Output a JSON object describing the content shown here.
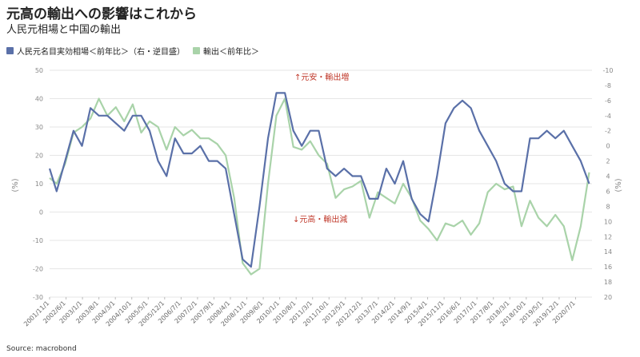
{
  "title": "元高の輸出への影響はこれから",
  "subtitle": "人民元相場と中国の輸出",
  "legend": {
    "series1": "人民元名目実効相場＜前年比＞（右・逆目盛）",
    "series2": "輸出＜前年比＞"
  },
  "source": "Source: macrobond",
  "colors": {
    "series1": "#5a70a8",
    "series2": "#a9d3a9"
  },
  "chart_data": {
    "type": "line",
    "ylabel_left": "(%)",
    "ylabel_right": "(%)",
    "ylim_left": [
      -30,
      50
    ],
    "ylim_right_inverted": [
      20,
      -10
    ],
    "yticks_left": [
      "50",
      "40",
      "30",
      "20",
      "10",
      "0",
      "-10",
      "-20",
      "-30"
    ],
    "yticks_right": [
      "-10",
      "-8",
      "-6",
      "-4",
      "-2",
      "0",
      "2",
      "4",
      "6",
      "8",
      "10",
      "12",
      "14",
      "16",
      "18",
      "20"
    ],
    "xtick_labels": [
      "2001/11/1",
      "2002/6/1",
      "2003/1/1",
      "2003/8/1",
      "2004/3/1",
      "2004/10/1",
      "2005/5/1",
      "2005/12/1",
      "2006/7/1",
      "2007/2/1",
      "2007/9/1",
      "2008/4/1",
      "2008/11/1",
      "2009/6/1",
      "2010/1/1",
      "2010/8/1",
      "2011/3/1",
      "2011/10/1",
      "2012/5/1",
      "2012/12/1",
      "2013/7/1",
      "2014/2/1",
      "2014/9/1",
      "2015/4/1",
      "2015/11/1",
      "2016/6/1",
      "2017/1/1",
      "2017/8/1",
      "2018/3/1",
      "2018/10/1",
      "2019/5/1",
      "2019/12/1",
      "2020/7/1"
    ],
    "x_years": [
      2001.75,
      2002.0,
      2002.3,
      2002.6,
      2002.9,
      2003.2,
      2003.5,
      2003.8,
      2004.1,
      2004.4,
      2004.7,
      2005.0,
      2005.3,
      2005.6,
      2005.9,
      2006.2,
      2006.5,
      2006.8,
      2007.1,
      2007.4,
      2007.7,
      2008.0,
      2008.3,
      2008.6,
      2008.9,
      2009.2,
      2009.5,
      2009.8,
      2010.1,
      2010.4,
      2010.7,
      2011.0,
      2011.3,
      2011.6,
      2011.9,
      2012.2,
      2012.5,
      2012.8,
      2013.1,
      2013.4,
      2013.7,
      2014.0,
      2014.3,
      2014.6,
      2014.9,
      2015.2,
      2015.5,
      2015.8,
      2016.1,
      2016.4,
      2016.7,
      2017.0,
      2017.3,
      2017.6,
      2017.9,
      2018.2,
      2018.5,
      2018.8,
      2019.1,
      2019.4,
      2019.7,
      2020.0,
      2020.3,
      2020.6,
      2020.9
    ],
    "series": [
      {
        "name": "人民元名目実効相場＜前年比＞（右・逆目盛）",
        "axis": "right",
        "values": [
          3,
          6,
          2,
          -2,
          0,
          -5,
          -4,
          -4,
          -3,
          -2,
          -4,
          -4,
          -2,
          2,
          4,
          -1,
          1,
          1,
          0,
          2,
          2,
          3,
          9,
          15,
          16,
          8,
          -1,
          -7,
          -7,
          -2,
          0,
          -2,
          -2,
          3,
          4,
          3,
          4,
          4,
          7,
          7,
          3,
          5,
          2,
          7,
          9,
          10,
          4,
          -3,
          -5,
          -6,
          -5,
          -2,
          0,
          2,
          5,
          6,
          6,
          -1,
          -1,
          -2,
          -1,
          -2,
          0,
          2,
          5
        ],
        "values_secondary": []
      },
      {
        "name": "輸出＜前年比＞",
        "values": [
          12,
          10,
          17,
          28,
          30,
          33,
          40,
          34,
          37,
          32,
          38,
          28,
          32,
          30,
          22,
          30,
          27,
          29,
          26,
          26,
          24,
          20,
          5,
          -18,
          -22,
          -20,
          10,
          34,
          40,
          23,
          22,
          25,
          20,
          17,
          5,
          8,
          9,
          11,
          -2,
          7,
          5,
          3,
          10,
          5,
          -3,
          -6,
          -10,
          -4,
          -5,
          -3,
          -8,
          -4,
          7,
          10,
          8,
          9,
          -5,
          4,
          -2,
          -5,
          -1,
          -5,
          -17,
          -5,
          14
        ]
      }
    ]
  }
}
